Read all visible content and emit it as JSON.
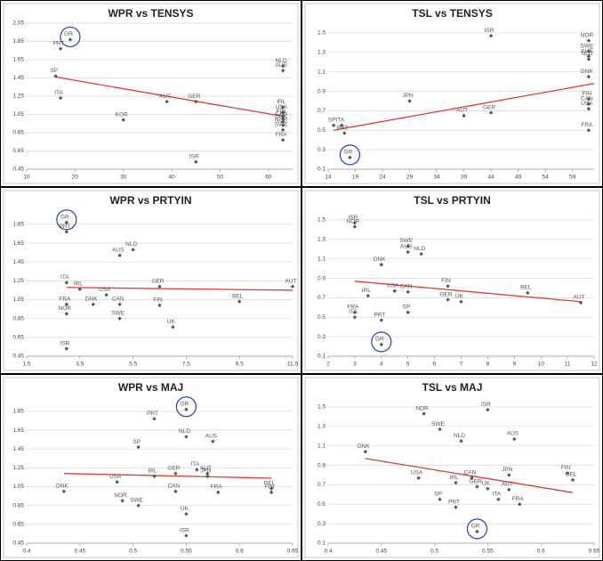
{
  "chart_data": [
    {
      "type": "scatter",
      "title": "WPR vs TENSYS",
      "xlim": [
        10,
        65
      ],
      "ylim": [
        0.45,
        2.05
      ],
      "xticks": [
        10,
        20,
        30,
        40,
        50,
        60
      ],
      "yticks": [
        0.45,
        0.65,
        0.85,
        1.05,
        1.25,
        1.45,
        1.65,
        1.85,
        2.05
      ],
      "grid": true,
      "color": "#555555",
      "labels": [
        "GR",
        "PRT",
        "SP",
        "ITA",
        "KOR",
        "AUT",
        "GER",
        "ISR",
        "NLD",
        "AUS",
        "IRL",
        "USA",
        "FIN",
        "CAN",
        "DNK",
        "NOR",
        "SWE",
        "FRA"
      ],
      "x": [
        19,
        17,
        16,
        17,
        30,
        39,
        45,
        45,
        63,
        63,
        63,
        63,
        63,
        63,
        63,
        63,
        63,
        63
      ],
      "y": [
        1.87,
        1.77,
        1.47,
        1.23,
        0.99,
        1.19,
        1.19,
        0.53,
        1.58,
        1.53,
        1.13,
        1.07,
        1.03,
        1.0,
        0.97,
        0.93,
        0.88,
        0.77
      ],
      "trend": {
        "x": [
          16,
          63
        ],
        "y": [
          1.46,
          1.03
        ],
        "color": "#e03c31"
      },
      "highlight": 0
    },
    {
      "type": "scatter",
      "title": "TSL vs TENSYS",
      "xlim": [
        14,
        63
      ],
      "ylim": [
        0.1,
        1.6
      ],
      "xticks": [
        14,
        19,
        24,
        29,
        34,
        39,
        44,
        49,
        54,
        59
      ],
      "yticks": [
        0.1,
        0.3,
        0.5,
        0.7,
        0.9,
        1.1,
        1.3,
        1.5
      ],
      "grid": true,
      "color": "#555555",
      "labels": [
        "ISR",
        "JPN",
        "AUT",
        "GER",
        "SP",
        "ITA",
        "PRT",
        "GR",
        "NOR",
        "SWE",
        "AUS",
        "NLD",
        "DNK",
        "FIN",
        "CAN",
        "USA",
        "FRA"
      ],
      "x": [
        44,
        29,
        39,
        44,
        15,
        16.5,
        17,
        18,
        62,
        62,
        62,
        62,
        62,
        62,
        62,
        62,
        62
      ],
      "y": [
        1.47,
        0.8,
        0.65,
        0.68,
        0.55,
        0.55,
        0.47,
        0.22,
        1.42,
        1.31,
        1.26,
        1.23,
        1.05,
        0.82,
        0.77,
        0.72,
        0.5
      ],
      "trend": {
        "x": [
          15,
          63
        ],
        "y": [
          0.5,
          0.98
        ],
        "color": "#e03c31"
      },
      "highlight": 7
    },
    {
      "type": "scatter",
      "title": "WPR vs PRTYIN",
      "xlim": [
        1.5,
        11.5
      ],
      "ylim": [
        0.45,
        2.0
      ],
      "xticks": [
        1.5,
        3.5,
        5.5,
        7.5,
        9.5,
        11.5
      ],
      "yticks": [
        0.45,
        0.65,
        0.85,
        1.05,
        1.25,
        1.45,
        1.65,
        1.85
      ],
      "grid": true,
      "color": "#555555",
      "labels": [
        "GR",
        "PRT",
        "NLD",
        "AUS",
        "ITA",
        "IRL",
        "USA",
        "DNK",
        "CAN",
        "GER",
        "FIN",
        "FRA",
        "NOR",
        "SWE",
        "BEL",
        "UK",
        "ISR",
        "AUT"
      ],
      "x": [
        3,
        3,
        5.5,
        5,
        3,
        3.5,
        4.5,
        4,
        5,
        6.5,
        6.5,
        3,
        3,
        5,
        9.5,
        7,
        3,
        11.5
      ],
      "y": [
        1.87,
        1.77,
        1.58,
        1.52,
        1.23,
        1.16,
        1.1,
        1.0,
        1.0,
        1.19,
        0.99,
        1.0,
        0.9,
        0.85,
        1.03,
        0.76,
        0.53,
        1.19
      ],
      "trend": {
        "x": [
          3,
          11.5
        ],
        "y": [
          1.18,
          1.15
        ],
        "color": "#e03c31"
      },
      "highlight": 0
    },
    {
      "type": "scatter",
      "title": "TSL vs PRTYIN",
      "xlim": [
        2,
        12
      ],
      "ylim": [
        0.1,
        1.6
      ],
      "xticks": [
        2,
        3,
        4,
        5,
        6,
        7,
        8,
        9,
        10,
        11,
        12
      ],
      "yticks": [
        0.1,
        0.3,
        0.5,
        0.7,
        0.9,
        1.1,
        1.3,
        1.5
      ],
      "grid": true,
      "color": "#555555",
      "labels": [
        "ISR",
        "NOR",
        "SWE",
        "AUS",
        "NLD",
        "DNK",
        "FIN",
        "USA",
        "CAN",
        "IRL",
        "GER",
        "UK",
        "SP",
        "BEL",
        "AUT",
        "FRA",
        "ITA",
        "PRT",
        "GR"
      ],
      "x": [
        3,
        3,
        5,
        5,
        5.5,
        4,
        6.5,
        4.5,
        5,
        3.5,
        6.5,
        7,
        5,
        9.5,
        11.5,
        3,
        3,
        4,
        4
      ],
      "y": [
        1.47,
        1.43,
        1.23,
        1.17,
        1.15,
        1.04,
        0.82,
        0.77,
        0.76,
        0.72,
        0.68,
        0.66,
        0.55,
        0.75,
        0.65,
        0.55,
        0.5,
        0.47,
        0.22
      ],
      "trend": {
        "x": [
          3,
          11.5
        ],
        "y": [
          0.87,
          0.66
        ],
        "color": "#e03c31"
      },
      "highlight": 18
    },
    {
      "type": "scatter",
      "title": "WPR vs MAJ",
      "xlim": [
        0.4,
        0.65
      ],
      "ylim": [
        0.45,
        2.0
      ],
      "xticks": [
        0.4,
        0.45,
        0.5,
        0.55,
        0.6,
        0.65
      ],
      "yticks": [
        0.45,
        0.65,
        0.85,
        1.05,
        1.25,
        1.45,
        1.65,
        1.85
      ],
      "grid": true,
      "color": "#555555",
      "labels": [
        "GR",
        "PRT",
        "NLD",
        "AUS",
        "SP",
        "ITA",
        "AUT",
        "JPN",
        "GER",
        "IRL",
        "USA",
        "CAN",
        "FRA",
        "DNK",
        "NOR",
        "SWE",
        "UK",
        "ISR",
        "BEL",
        "FIN"
      ],
      "x": [
        0.55,
        0.52,
        0.55,
        0.575,
        0.505,
        0.56,
        0.57,
        0.57,
        0.54,
        0.52,
        0.485,
        0.54,
        0.58,
        0.435,
        0.49,
        0.505,
        0.55,
        0.55,
        0.63,
        0.63
      ],
      "y": [
        1.87,
        1.77,
        1.58,
        1.53,
        1.47,
        1.23,
        1.19,
        1.16,
        1.19,
        1.16,
        1.1,
        1.0,
        0.99,
        1.0,
        0.9,
        0.85,
        0.76,
        0.53,
        1.03,
        0.99
      ],
      "trend": {
        "x": [
          0.435,
          0.63
        ],
        "y": [
          1.19,
          1.14
        ],
        "color": "#e03c31"
      },
      "highlight": 0
    },
    {
      "type": "scatter",
      "title": "TSL vs MAJ",
      "xlim": [
        0.4,
        0.65
      ],
      "ylim": [
        0.1,
        1.6
      ],
      "xticks": [
        0.4,
        0.45,
        0.5,
        0.55,
        0.6,
        0.65
      ],
      "yticks": [
        0.1,
        0.3,
        0.5,
        0.7,
        0.9,
        1.1,
        1.3,
        1.5
      ],
      "grid": true,
      "color": "#555555",
      "labels": [
        "ISR",
        "NOR",
        "SWE",
        "AUS",
        "NLD",
        "DNK",
        "JPN",
        "FIN",
        "BEL",
        "CAN",
        "USA",
        "IRL",
        "GER",
        "UK",
        "AUT",
        "ITA",
        "SP",
        "FRA",
        "PRT",
        "GR"
      ],
      "x": [
        0.55,
        0.49,
        0.505,
        0.575,
        0.525,
        0.435,
        0.57,
        0.625,
        0.63,
        0.535,
        0.485,
        0.52,
        0.54,
        0.55,
        0.57,
        0.56,
        0.505,
        0.58,
        0.52,
        0.54
      ],
      "y": [
        1.47,
        1.43,
        1.27,
        1.17,
        1.15,
        1.04,
        0.8,
        0.82,
        0.75,
        0.77,
        0.77,
        0.72,
        0.68,
        0.66,
        0.65,
        0.55,
        0.55,
        0.5,
        0.47,
        0.22
      ],
      "trend": {
        "x": [
          0.435,
          0.63
        ],
        "y": [
          0.97,
          0.62
        ],
        "color": "#e03c31"
      },
      "highlight": 19
    }
  ]
}
